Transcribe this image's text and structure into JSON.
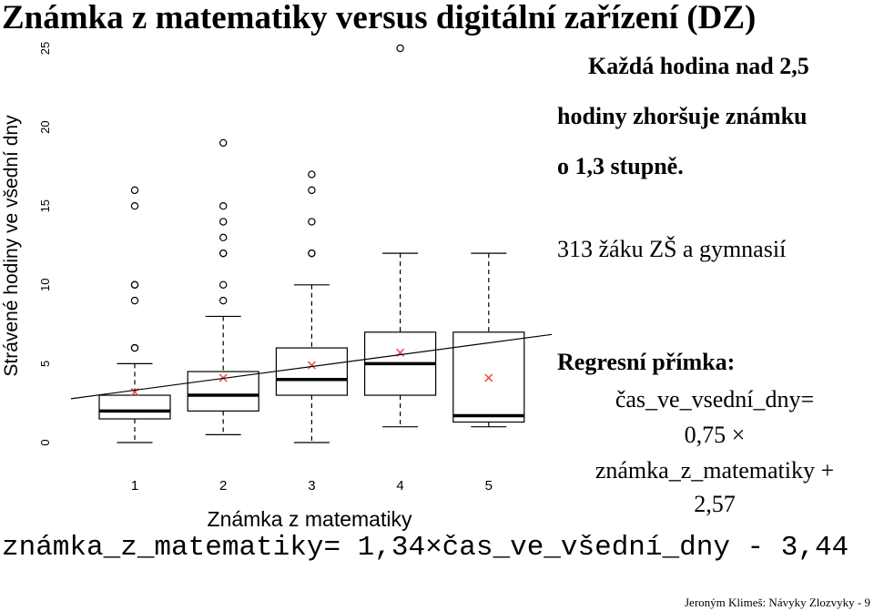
{
  "title": "Známka z matematiky versus digitální zařízení (DZ)",
  "annotations": {
    "claim_line1": "Každá hodina nad 2,5",
    "claim_line2": "hodiny zhoršuje známku",
    "claim_line3": "o 1,3 stupně.",
    "sample": "313 žáku ZŠ a gymnasií",
    "regression_title": "Regresní přímka:",
    "regression_line1": "čas_ve_vsední_dny=",
    "regression_line2": "0,75 ×",
    "regression_line3": "známka_z_matematiky +",
    "regression_line4": "2,57"
  },
  "formula": "známka_z_matematiky= 1,34×čas_ve_všední_dny - 3,44",
  "footer": "Jeroným Klimeš: Návyky Zlozvyky - 9",
  "chart_data": {
    "type": "boxplot",
    "xlabel": "Známka z matematiky",
    "ylabel": "Strávené hodiny ve všední dny",
    "categories": [
      "1",
      "2",
      "3",
      "4",
      "5"
    ],
    "ylim": [
      0,
      25
    ],
    "yticks": [
      "0",
      "5",
      "10",
      "15",
      "20",
      "25"
    ],
    "boxes": [
      {
        "category": "1",
        "whisker_low": 0,
        "q1": 1.5,
        "median": 2,
        "q3": 3,
        "whisker_high": 5,
        "mean": 3.2,
        "outliers": [
          6,
          6,
          9,
          10,
          10,
          15,
          16
        ]
      },
      {
        "category": "2",
        "whisker_low": 0.5,
        "q1": 2,
        "median": 3,
        "q3": 4.5,
        "whisker_high": 8,
        "mean": 4.1,
        "outliers": [
          9,
          10,
          12,
          12,
          13,
          14,
          15,
          19
        ]
      },
      {
        "category": "3",
        "whisker_low": 0,
        "q1": 3,
        "median": 4,
        "q3": 6,
        "whisker_high": 10,
        "mean": 4.9,
        "outliers": [
          12,
          12,
          14,
          16,
          17
        ]
      },
      {
        "category": "4",
        "whisker_low": 1,
        "q1": 3,
        "median": 5,
        "q3": 7,
        "whisker_high": 12,
        "mean": 5.7,
        "outliers": [
          25
        ]
      },
      {
        "category": "5",
        "whisker_low": 1,
        "q1": 1.3,
        "median": 1.7,
        "q3": 7,
        "whisker_high": 12,
        "mean": 4.1,
        "outliers": []
      }
    ],
    "regression": {
      "intercept": 2.57,
      "slope": 0.75
    },
    "colors": {
      "box": "#000000",
      "mean_marker": "#e8493c",
      "outlier": "#000000",
      "regression_line": "#000000"
    }
  }
}
